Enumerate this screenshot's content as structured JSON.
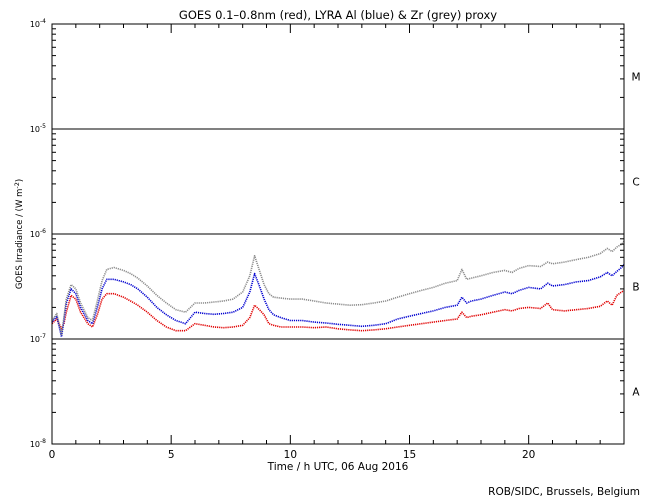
{
  "chart_data": {
    "type": "line",
    "title": "GOES 0.1–0.8nm (red), LYRA Al (blue) & Zr (grey) proxy",
    "xlabel": "Time / h UTC, 06 Aug 2016",
    "ylabel_main": "GOES Irradiance / (W m",
    "ylabel_sup": "-2",
    "ylabel_close": ")",
    "credit": "ROB/SIDC, Brussels, Belgium",
    "x_range": [
      0,
      24
    ],
    "y_scale": "log",
    "y_range": [
      1e-08,
      0.0001
    ],
    "x_ticks": [
      {
        "v": 0,
        "label": "0"
      },
      {
        "v": 5,
        "label": "5"
      },
      {
        "v": 10,
        "label": "10"
      },
      {
        "v": 15,
        "label": "15"
      },
      {
        "v": 20,
        "label": "20"
      }
    ],
    "y_ticks": [
      {
        "exp": -8,
        "base": "10",
        "sup": "-8"
      },
      {
        "exp": -7,
        "base": "10",
        "sup": "-7"
      },
      {
        "exp": -6,
        "base": "10",
        "sup": "-6"
      },
      {
        "exp": -5,
        "base": "10",
        "sup": "-5"
      },
      {
        "exp": -4,
        "base": "10",
        "sup": "-4"
      }
    ],
    "flare_class_lines": [
      1e-07,
      1e-06,
      1e-05
    ],
    "flare_classes": [
      {
        "label": "A",
        "exp": -7.5
      },
      {
        "label": "B",
        "exp": -6.5
      },
      {
        "label": "C",
        "exp": -5.5
      },
      {
        "label": "M",
        "exp": -4.5
      }
    ],
    "series": [
      {
        "color": "#e00000",
        "x": [
          0,
          0.2,
          0.4,
          0.5,
          0.6,
          0.8,
          1.0,
          1.2,
          1.5,
          1.7,
          1.9,
          2.1,
          2.3,
          2.6,
          3.0,
          3.3,
          3.6,
          4.0,
          4.4,
          4.8,
          5.2,
          5.6,
          6.0,
          6.4,
          6.8,
          7.2,
          7.6,
          8.0,
          8.3,
          8.5,
          8.7,
          8.9,
          9.1,
          9.3,
          9.6,
          10.0,
          10.5,
          11.0,
          11.5,
          12.0,
          12.5,
          13.0,
          13.5,
          14.0,
          14.5,
          15.0,
          15.5,
          16.0,
          16.5,
          17.0,
          17.2,
          17.4,
          17.6,
          18.0,
          18.5,
          19.0,
          19.3,
          19.6,
          20.0,
          20.5,
          20.8,
          21.0,
          21.5,
          22.0,
          22.5,
          23.0,
          23.3,
          23.5,
          23.7,
          23.9,
          24.0
        ],
        "y": [
          1.4e-07,
          1.55e-07,
          1.25e-07,
          1.4e-07,
          1.8e-07,
          2.6e-07,
          2.4e-07,
          1.8e-07,
          1.4e-07,
          1.3e-07,
          1.7e-07,
          2.4e-07,
          2.7e-07,
          2.7e-07,
          2.5e-07,
          2.3e-07,
          2.1e-07,
          1.8e-07,
          1.5e-07,
          1.3e-07,
          1.2e-07,
          1.2e-07,
          1.4e-07,
          1.35e-07,
          1.3e-07,
          1.28e-07,
          1.3e-07,
          1.35e-07,
          1.6e-07,
          2.1e-07,
          1.9e-07,
          1.7e-07,
          1.4e-07,
          1.35e-07,
          1.3e-07,
          1.3e-07,
          1.3e-07,
          1.28e-07,
          1.3e-07,
          1.25e-07,
          1.22e-07,
          1.2e-07,
          1.22e-07,
          1.25e-07,
          1.3e-07,
          1.35e-07,
          1.4e-07,
          1.45e-07,
          1.5e-07,
          1.55e-07,
          1.8e-07,
          1.6e-07,
          1.65e-07,
          1.7e-07,
          1.8e-07,
          1.9e-07,
          1.85e-07,
          1.95e-07,
          2e-07,
          1.95e-07,
          2.2e-07,
          1.9e-07,
          1.85e-07,
          1.9e-07,
          1.95e-07,
          2.05e-07,
          2.3e-07,
          2.1e-07,
          2.6e-07,
          2.8e-07,
          2.9e-07
        ]
      },
      {
        "color": "#0000d0",
        "x": [
          0,
          0.2,
          0.4,
          0.5,
          0.6,
          0.8,
          1.0,
          1.2,
          1.5,
          1.7,
          1.9,
          2.1,
          2.3,
          2.6,
          3.0,
          3.3,
          3.6,
          4.0,
          4.4,
          4.8,
          5.2,
          5.6,
          6.0,
          6.4,
          6.8,
          7.2,
          7.6,
          8.0,
          8.3,
          8.5,
          8.7,
          8.9,
          9.1,
          9.3,
          9.6,
          10.0,
          10.5,
          11.0,
          11.5,
          12.0,
          12.5,
          13.0,
          13.5,
          14.0,
          14.5,
          15.0,
          15.5,
          16.0,
          16.5,
          17.0,
          17.2,
          17.4,
          17.6,
          18.0,
          18.5,
          19.0,
          19.3,
          19.6,
          20.0,
          20.5,
          20.8,
          21.0,
          21.5,
          22.0,
          22.5,
          23.0,
          23.3,
          23.5,
          23.7,
          23.9,
          24.0
        ],
        "y": [
          1.45e-07,
          1.65e-07,
          1.05e-07,
          1.5e-07,
          2.2e-07,
          3e-07,
          2.7e-07,
          2e-07,
          1.5e-07,
          1.4e-07,
          2e-07,
          3e-07,
          3.7e-07,
          3.7e-07,
          3.5e-07,
          3.3e-07,
          3e-07,
          2.5e-07,
          2e-07,
          1.7e-07,
          1.5e-07,
          1.4e-07,
          1.8e-07,
          1.75e-07,
          1.72e-07,
          1.75e-07,
          1.8e-07,
          2e-07,
          2.8e-07,
          4.2e-07,
          3.2e-07,
          2.4e-07,
          1.9e-07,
          1.7e-07,
          1.6e-07,
          1.5e-07,
          1.5e-07,
          1.45e-07,
          1.42e-07,
          1.38e-07,
          1.35e-07,
          1.32e-07,
          1.35e-07,
          1.4e-07,
          1.55e-07,
          1.65e-07,
          1.75e-07,
          1.85e-07,
          2e-07,
          2.1e-07,
          2.5e-07,
          2.2e-07,
          2.3e-07,
          2.4e-07,
          2.6e-07,
          2.8e-07,
          2.7e-07,
          2.9e-07,
          3.1e-07,
          3e-07,
          3.4e-07,
          3.2e-07,
          3.3e-07,
          3.5e-07,
          3.6e-07,
          3.9e-07,
          4.3e-07,
          4e-07,
          4.4e-07,
          4.8e-07,
          5.1e-07
        ]
      },
      {
        "color": "#8c8c8c",
        "x": [
          0,
          0.2,
          0.4,
          0.5,
          0.6,
          0.8,
          1.0,
          1.2,
          1.5,
          1.7,
          1.9,
          2.1,
          2.3,
          2.6,
          3.0,
          3.3,
          3.6,
          4.0,
          4.4,
          4.8,
          5.2,
          5.6,
          6.0,
          6.4,
          6.8,
          7.2,
          7.6,
          8.0,
          8.3,
          8.5,
          8.7,
          8.9,
          9.1,
          9.3,
          9.6,
          10.0,
          10.5,
          11.0,
          11.5,
          12.0,
          12.5,
          13.0,
          13.5,
          14.0,
          14.5,
          15.0,
          15.5,
          16.0,
          16.5,
          17.0,
          17.2,
          17.4,
          17.6,
          18.0,
          18.5,
          19.0,
          19.3,
          19.6,
          20.0,
          20.5,
          20.8,
          21.0,
          21.5,
          22.0,
          22.5,
          23.0,
          23.3,
          23.5,
          23.7,
          23.9,
          24.0
        ],
        "y": [
          1.5e-07,
          1.75e-07,
          1.1e-07,
          1.6e-07,
          2.4e-07,
          3.3e-07,
          3e-07,
          2.2e-07,
          1.6e-07,
          1.5e-07,
          2.3e-07,
          3.6e-07,
          4.6e-07,
          4.8e-07,
          4.5e-07,
          4.2e-07,
          3.8e-07,
          3.2e-07,
          2.6e-07,
          2.2e-07,
          1.9e-07,
          1.8e-07,
          2.2e-07,
          2.2e-07,
          2.25e-07,
          2.3e-07,
          2.4e-07,
          2.8e-07,
          4e-07,
          6.2e-07,
          4.5e-07,
          3.3e-07,
          2.7e-07,
          2.5e-07,
          2.45e-07,
          2.4e-07,
          2.4e-07,
          2.3e-07,
          2.2e-07,
          2.15e-07,
          2.1e-07,
          2.12e-07,
          2.2e-07,
          2.3e-07,
          2.5e-07,
          2.7e-07,
          2.9e-07,
          3.1e-07,
          3.4e-07,
          3.6e-07,
          4.6e-07,
          3.7e-07,
          3.8e-07,
          4e-07,
          4.3e-07,
          4.5e-07,
          4.3e-07,
          4.7e-07,
          5e-07,
          4.9e-07,
          5.4e-07,
          5.2e-07,
          5.4e-07,
          5.7e-07,
          6e-07,
          6.5e-07,
          7.3e-07,
          6.8e-07,
          7.5e-07,
          8e-07,
          8.5e-07
        ]
      }
    ]
  }
}
